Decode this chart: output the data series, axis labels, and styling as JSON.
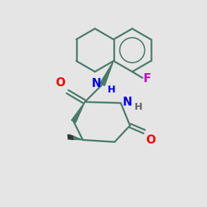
{
  "background_color": "#e5e5e5",
  "bond_color": "#4a7a6a",
  "bond_width": 1.8,
  "atoms": {
    "F": {
      "color": "#cc00cc",
      "fontsize": 12
    },
    "O": {
      "color": "#ff0000",
      "fontsize": 12
    },
    "N": {
      "color": "#0000ee",
      "fontsize": 12
    },
    "H_amide": {
      "color": "#0000ee",
      "fontsize": 10
    },
    "H_ring": {
      "color": "#555555",
      "fontsize": 10
    }
  },
  "figsize": [
    3.0,
    3.0
  ],
  "dpi": 100
}
